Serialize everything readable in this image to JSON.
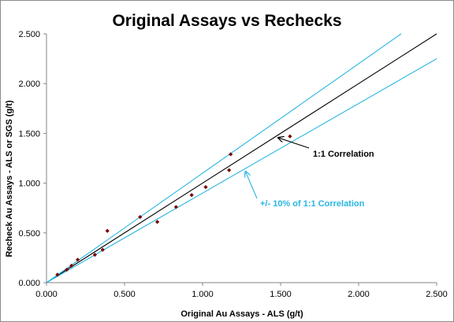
{
  "chart_data": {
    "type": "scatter",
    "title": "Original Assays vs Rechecks",
    "xlabel": "Original  Au Assays  - ALS (g/t)",
    "ylabel": "Recheck Au Assays  - ALS or SGS  (g/t)",
    "xlim": [
      0,
      2.5
    ],
    "ylim": [
      0,
      2.5
    ],
    "x_ticks": [
      "0.000",
      "0.500",
      "1.000",
      "1.500",
      "2.000",
      "2.500"
    ],
    "y_ticks": [
      "0.000",
      "0.500",
      "1.000",
      "1.500",
      "2.000",
      "2.500"
    ],
    "grid": false,
    "series": [
      {
        "type": "scatter",
        "color": "#7b0000",
        "x": [
          0.07,
          0.13,
          0.16,
          0.2,
          0.31,
          0.36,
          0.39,
          0.6,
          0.71,
          0.83,
          0.93,
          1.02,
          1.17,
          1.18,
          1.56
        ],
        "y": [
          0.08,
          0.13,
          0.17,
          0.23,
          0.28,
          0.33,
          0.52,
          0.66,
          0.61,
          0.76,
          0.88,
          0.96,
          1.13,
          1.29,
          1.47
        ]
      }
    ],
    "reference_lines": [
      {
        "slope": 1.0,
        "color": "#000000"
      },
      {
        "slope": 1.1,
        "color": "#29b6e0"
      },
      {
        "slope": 0.9,
        "color": "#29b6e0"
      }
    ],
    "annotations": [
      {
        "text": "1:1 Correlation",
        "color": "#000000",
        "arrow_to": [
          1.47,
          1.48
        ]
      },
      {
        "text": "+/- 10% of 1:1 Correlation",
        "color": "#29b6e0",
        "arrow_to": [
          1.26,
          1.14
        ]
      }
    ]
  }
}
